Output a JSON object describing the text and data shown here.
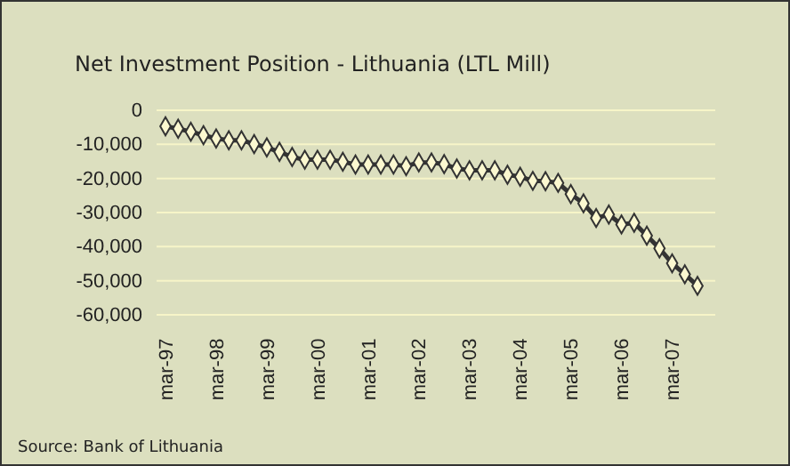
{
  "chart_data": {
    "type": "line",
    "title": "Net Investment Position - Lithuania (LTL Mill)",
    "categories": [
      "mar-97",
      null,
      null,
      null,
      "mar-98",
      null,
      null,
      null,
      "mar-99",
      null,
      null,
      null,
      "mar-00",
      null,
      null,
      null,
      "mar-01",
      null,
      null,
      null,
      "mar-02",
      null,
      null,
      null,
      "mar-03",
      null,
      null,
      null,
      "mar-04",
      null,
      null,
      null,
      "mar-05",
      null,
      null,
      null,
      "mar-06",
      null,
      null,
      null,
      "mar-07",
      null,
      null
    ],
    "series": [
      {
        "color": "#333333",
        "values": [
          -4700,
          -5400,
          -6300,
          -7300,
          -8300,
          -8800,
          -8800,
          -9900,
          -10900,
          -12200,
          -13700,
          -14500,
          -14500,
          -14500,
          -15100,
          -15900,
          -15900,
          -15900,
          -15900,
          -16400,
          -15300,
          -15300,
          -15800,
          -17100,
          -17600,
          -17600,
          -17600,
          -18900,
          -19500,
          -20700,
          -20800,
          -21300,
          -24600,
          -27300,
          -31600,
          -30600,
          -33500,
          -33000,
          -36800,
          -40500,
          -44900,
          -48100,
          -51500
        ]
      }
    ],
    "ylim": [
      -60000,
      0
    ],
    "yticks": [
      {
        "value": 0,
        "label": "0"
      },
      {
        "value": -10000,
        "label": "-10,000"
      },
      {
        "value": -20000,
        "label": "-20,000"
      },
      {
        "value": -30000,
        "label": "-30,000"
      },
      {
        "value": -40000,
        "label": "-40,000"
      },
      {
        "value": -50000,
        "label": "-50,000"
      },
      {
        "value": -60000,
        "label": "-60,000"
      }
    ],
    "grid": "y",
    "marker": "diamond",
    "line_style": "solid",
    "annotations": [
      "Source: Bank of Lithuania"
    ]
  }
}
